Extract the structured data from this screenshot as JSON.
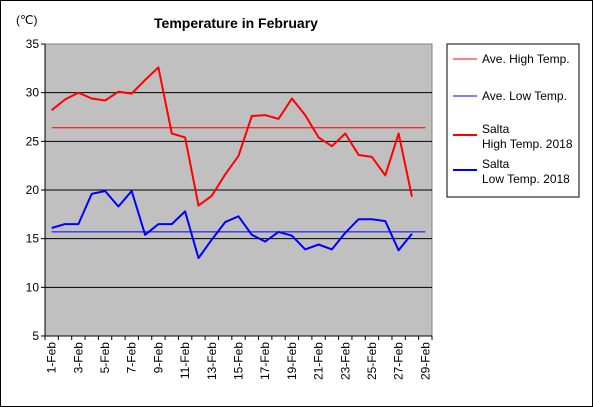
{
  "chart_data": {
    "type": "line",
    "title": "Temperature in February",
    "unit_label": "(℃)",
    "ylim": [
      5,
      35
    ],
    "y_ticks": [
      5,
      10,
      15,
      20,
      25,
      30,
      35
    ],
    "grid": "horizontal",
    "legend_position": "right",
    "categories": [
      "1-Feb",
      "2-Feb",
      "3-Feb",
      "4-Feb",
      "5-Feb",
      "6-Feb",
      "7-Feb",
      "8-Feb",
      "9-Feb",
      "10-Feb",
      "11-Feb",
      "12-Feb",
      "13-Feb",
      "14-Feb",
      "15-Feb",
      "16-Feb",
      "17-Feb",
      "18-Feb",
      "19-Feb",
      "20-Feb",
      "21-Feb",
      "22-Feb",
      "23-Feb",
      "24-Feb",
      "25-Feb",
      "26-Feb",
      "27-Feb",
      "28-Feb",
      "29-Feb"
    ],
    "x_tick_labels": [
      "1-Feb",
      "3-Feb",
      "5-Feb",
      "7-Feb",
      "9-Feb",
      "11-Feb",
      "13-Feb",
      "15-Feb",
      "17-Feb",
      "19-Feb",
      "21-Feb",
      "23-Feb",
      "25-Feb",
      "27-Feb",
      "29-Feb"
    ],
    "reference_lines": [
      {
        "name": "Ave. High Temp.",
        "value": 26.4,
        "color": "#ff0000"
      },
      {
        "name": "Ave. Low Temp.",
        "value": 15.7,
        "color": "#0000ff"
      }
    ],
    "series": [
      {
        "name_line1": "Salta",
        "name_line2": "High Temp. 2018",
        "color": "#ff0000",
        "values": [
          28.2,
          29.3,
          30.0,
          29.4,
          29.2,
          30.1,
          29.9,
          31.3,
          32.6,
          25.8,
          25.4,
          18.4,
          19.4,
          21.6,
          23.5,
          27.6,
          27.7,
          27.3,
          29.4,
          27.7,
          25.4,
          24.5,
          25.8,
          23.6,
          23.4,
          21.5,
          25.8,
          19.3,
          null
        ]
      },
      {
        "name_line1": "Salta",
        "name_line2": "Low Temp. 2018",
        "color": "#0000ff",
        "values": [
          16.1,
          16.5,
          16.5,
          19.6,
          19.9,
          18.3,
          19.9,
          15.4,
          16.5,
          16.5,
          17.8,
          13.0,
          14.9,
          16.7,
          17.3,
          15.4,
          14.7,
          15.7,
          15.3,
          13.9,
          14.4,
          13.9,
          15.6,
          17.0,
          17.0,
          16.8,
          13.8,
          15.5,
          null
        ]
      }
    ]
  }
}
